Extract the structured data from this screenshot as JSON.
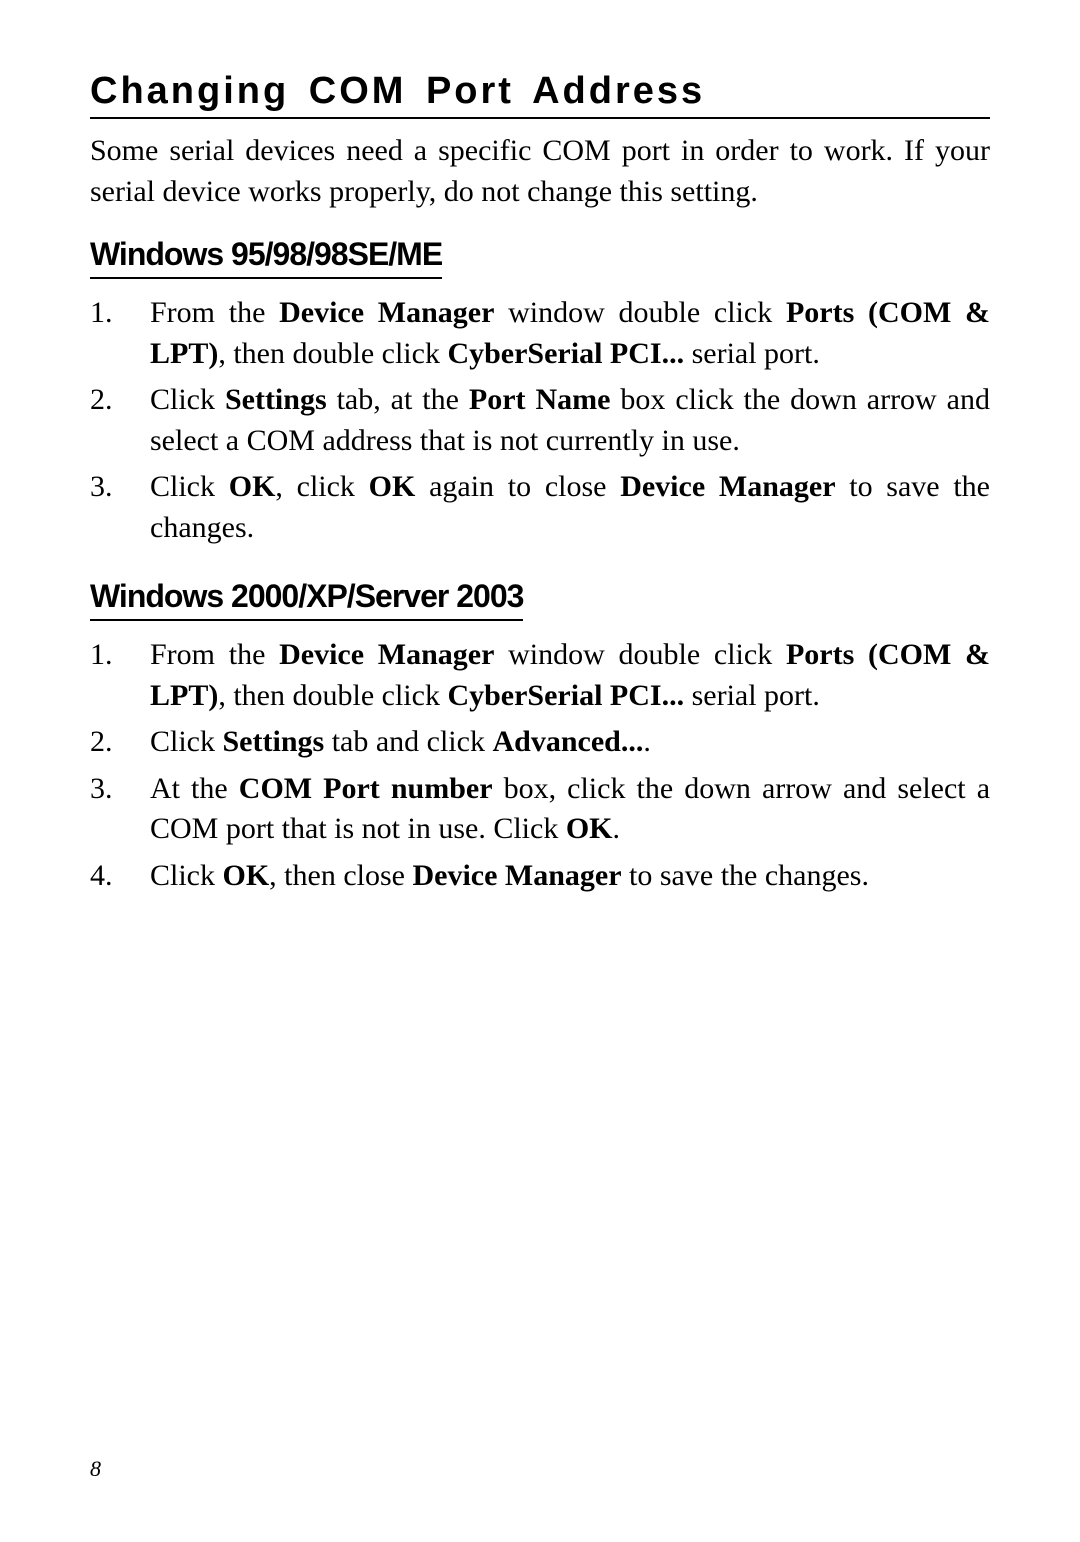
{
  "heading": "Changing COM Port Address",
  "intro": "Some serial devices need a specific COM port in order to work.  If your serial device works properly, do not change this setting.",
  "section1": {
    "title": "Windows 95/98/98SE/ME",
    "steps": [
      {
        "num": "1.",
        "prefix": "From the ",
        "b1": "Device Manager",
        "mid1": " window double click ",
        "b2": "Ports (COM & LPT)",
        "mid2": ", then double click ",
        "b3": "CyberSerial PCI...",
        "suffix": " serial port."
      },
      {
        "num": "2.",
        "prefix": "Click ",
        "b1": "Settings",
        "mid1": " tab, at the ",
        "b2": "Port Name",
        "suffix": " box click the down arrow and select a COM address that is not currently in use."
      },
      {
        "num": "3.",
        "prefix": "Click ",
        "b1": "OK",
        "mid1": ", click ",
        "b2": "OK",
        "mid2": " again to close ",
        "b3": "Device Manager",
        "suffix": " to save the changes."
      }
    ]
  },
  "section2": {
    "title": "Windows 2000/XP/Server 2003",
    "steps": [
      {
        "num": "1.",
        "prefix": "From the ",
        "b1": "Device Manager",
        "mid1": " window double click ",
        "b2": "Ports (COM & LPT)",
        "mid2": ", then double click ",
        "b3": "CyberSerial PCI...",
        "suffix": " serial port."
      },
      {
        "num": "2.",
        "prefix": "Click ",
        "b1": "Settings",
        "mid1": " tab and click ",
        "b2": "Advanced...",
        "suffix": "."
      },
      {
        "num": "3.",
        "prefix": "At the ",
        "b1": "COM Port number",
        "mid1": " box, click the down arrow and select a COM port that is not in use.  Click ",
        "b2": "OK",
        "suffix": "."
      },
      {
        "num": "4.",
        "prefix": "Click ",
        "b1": "OK",
        "mid1": ", then close ",
        "b2": "Device Manager",
        "suffix": " to save the changes."
      }
    ]
  },
  "pageNumber": "8"
}
